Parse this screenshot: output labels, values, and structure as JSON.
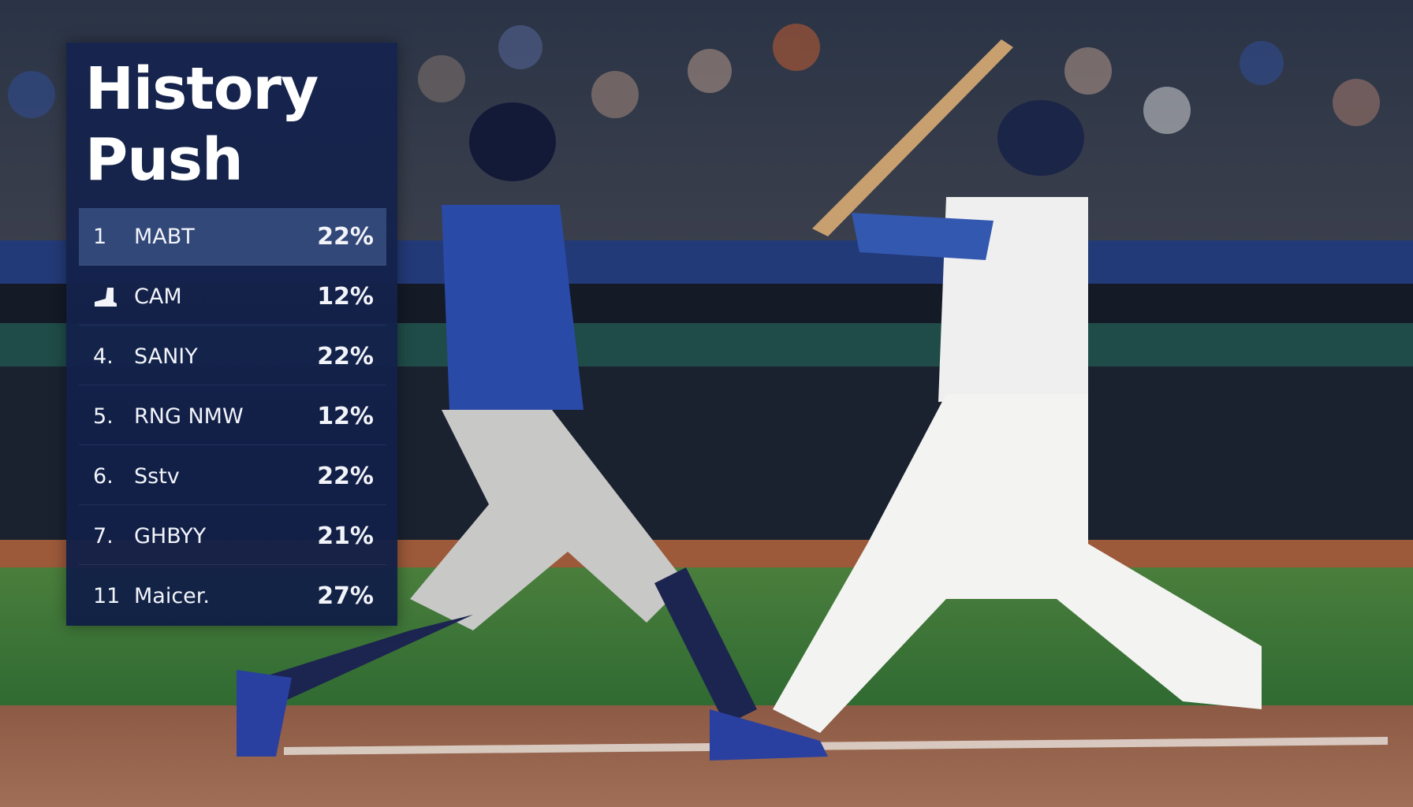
{
  "overlay": {
    "title_line1": "History",
    "title_line2": "Push",
    "rows": [
      {
        "rank": "1",
        "name": "MABT",
        "value": "22%",
        "highlighted": true
      },
      {
        "rank": "",
        "rank_icon": "cleat-icon",
        "name": "CAM",
        "value": "12%"
      },
      {
        "rank": "4.",
        "name": "SANIY",
        "value": "22%"
      },
      {
        "rank": "5.",
        "name": "RNG NMW",
        "value": "12%"
      },
      {
        "rank": "6.",
        "name": "Sstv",
        "value": "22%"
      },
      {
        "rank": "7.",
        "name": "GHBYY",
        "value": "21%"
      },
      {
        "rank": "11",
        "name": "Maicer.",
        "value": "27%"
      }
    ]
  },
  "colors": {
    "panel": "#16244e",
    "highlight": "#3c5587",
    "field": "#3f7a3a",
    "dirt": "#8a5a44"
  }
}
